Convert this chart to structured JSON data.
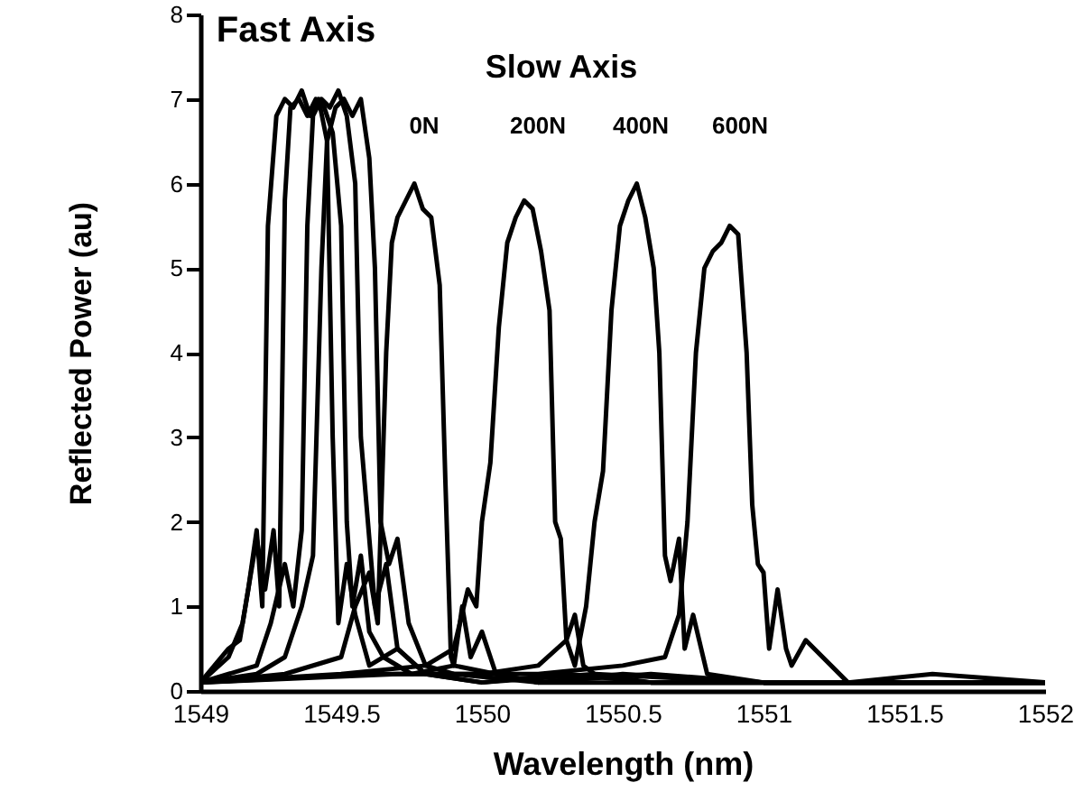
{
  "chart_data": {
    "type": "line",
    "xlabel": "Wavelength (nm)",
    "ylabel": "Reflected Power (au)",
    "xlim": [
      1549,
      1552
    ],
    "xticks": [
      1549,
      1549.5,
      1550,
      1550.5,
      1551,
      1551.5,
      1552
    ],
    "ylim": [
      0,
      8
    ],
    "yticks": [
      0,
      1,
      2,
      3,
      4,
      5,
      6,
      7,
      8
    ],
    "annotations": [
      "Fast Axis",
      "Slow Axis",
      "0N",
      "200N",
      "400N",
      "600N"
    ],
    "series": [
      {
        "color": "#000000",
        "x": [
          1549,
          1549.05,
          1549.1,
          1549.14,
          1549.17,
          1549.2,
          1549.22,
          1549.24,
          1549.27,
          1549.3,
          1549.33,
          1549.36,
          1549.39,
          1549.42,
          1549.45,
          1549.47,
          1549.49,
          1549.52,
          1549.55,
          1549.6,
          1549.7,
          1549.8,
          1550,
          1550.3,
          1550.6,
          1551,
          1551.5,
          1552
        ],
        "values": [
          0.1,
          0.3,
          0.5,
          0.6,
          1.2,
          1.9,
          1.0,
          5.5,
          6.8,
          7.0,
          6.9,
          7.1,
          6.8,
          7.0,
          6.5,
          3,
          0.8,
          1.5,
          0.9,
          0.3,
          0.5,
          0.2,
          0.1,
          0.2,
          0.1,
          0.1,
          0.1,
          0.1
        ]
      },
      {
        "color": "#000000",
        "x": [
          1549,
          1549.1,
          1549.15,
          1549.2,
          1549.23,
          1549.26,
          1549.28,
          1549.3,
          1549.32,
          1549.35,
          1549.38,
          1549.41,
          1549.44,
          1549.47,
          1549.5,
          1549.52,
          1549.54,
          1549.57,
          1549.6,
          1549.65,
          1549.75,
          1549.9,
          1550.2,
          1550.5,
          1551,
          1551.5,
          1552
        ],
        "values": [
          0.1,
          0.4,
          0.8,
          1.8,
          1.2,
          1.9,
          1.0,
          5.8,
          6.9,
          7.0,
          6.8,
          7.0,
          6.9,
          6.6,
          5.5,
          2.0,
          1.0,
          1.6,
          0.7,
          0.4,
          0.2,
          0.3,
          0.1,
          0.2,
          0.1,
          0.1,
          0.1
        ]
      },
      {
        "color": "#000000",
        "x": [
          1549,
          1549.1,
          1549.2,
          1549.25,
          1549.3,
          1549.33,
          1549.36,
          1549.38,
          1549.4,
          1549.43,
          1549.46,
          1549.49,
          1549.52,
          1549.55,
          1549.57,
          1549.6,
          1549.62,
          1549.66,
          1549.7,
          1549.8,
          1550,
          1550.4,
          1551,
          1552
        ],
        "values": [
          0.1,
          0.2,
          0.3,
          0.8,
          1.5,
          1.0,
          1.9,
          5.5,
          6.8,
          7.0,
          6.9,
          7.1,
          6.8,
          6.0,
          3.0,
          1.8,
          1.0,
          1.5,
          0.5,
          0.2,
          0.1,
          0.2,
          0.1,
          0.1
        ]
      },
      {
        "color": "#000000",
        "x": [
          1549,
          1549.2,
          1549.3,
          1549.36,
          1549.4,
          1549.43,
          1549.45,
          1549.48,
          1549.51,
          1549.54,
          1549.57,
          1549.6,
          1549.62,
          1549.64,
          1549.67,
          1549.7,
          1549.74,
          1549.8,
          1549.9,
          1550.2,
          1550.8,
          1551.5,
          1552
        ],
        "values": [
          0.1,
          0.2,
          0.4,
          1.0,
          1.6,
          5.0,
          6.5,
          6.9,
          7.0,
          6.8,
          7.0,
          6.3,
          5.0,
          2.0,
          1.5,
          1.8,
          0.8,
          0.3,
          0.2,
          0.1,
          0.1,
          0.1,
          0.1
        ]
      },
      {
        "color": "#000000",
        "x": [
          1549,
          1549.3,
          1549.5,
          1549.55,
          1549.6,
          1549.63,
          1549.66,
          1549.68,
          1549.7,
          1549.73,
          1549.76,
          1549.79,
          1549.82,
          1549.85,
          1549.87,
          1549.89,
          1549.9,
          1549.93,
          1549.96,
          1550,
          1550.05,
          1550.2,
          1550.6,
          1551,
          1552
        ],
        "values": [
          0.1,
          0.2,
          0.4,
          1.0,
          1.4,
          0.8,
          4.0,
          5.3,
          5.6,
          5.8,
          6.0,
          5.7,
          5.6,
          4.8,
          2.5,
          0.4,
          0.3,
          1.0,
          0.4,
          0.7,
          0.2,
          0.1,
          0.2,
          0.1,
          0.1
        ]
      },
      {
        "color": "#000000",
        "x": [
          1549,
          1549.5,
          1549.8,
          1549.9,
          1549.95,
          1549.98,
          1550.0,
          1550.03,
          1550.06,
          1550.09,
          1550.12,
          1550.15,
          1550.18,
          1550.21,
          1550.24,
          1550.26,
          1550.28,
          1550.3,
          1550.33,
          1550.36,
          1550.4,
          1550.6,
          1551,
          1552
        ],
        "values": [
          0.1,
          0.2,
          0.3,
          0.5,
          1.2,
          1.0,
          2.0,
          2.7,
          4.3,
          5.3,
          5.6,
          5.8,
          5.7,
          5.2,
          4.5,
          2.0,
          1.8,
          0.6,
          0.9,
          0.3,
          0.2,
          0.1,
          0.1,
          0.1
        ]
      },
      {
        "color": "#000000",
        "x": [
          1549,
          1549.6,
          1550,
          1550.2,
          1550.3,
          1550.33,
          1550.37,
          1550.4,
          1550.43,
          1550.46,
          1550.49,
          1550.52,
          1550.55,
          1550.58,
          1550.61,
          1550.63,
          1550.65,
          1550.67,
          1550.7,
          1550.72,
          1550.75,
          1550.8,
          1551,
          1552
        ],
        "values": [
          0.1,
          0.2,
          0.2,
          0.3,
          0.6,
          0.3,
          1.0,
          2.0,
          2.6,
          4.5,
          5.5,
          5.8,
          6.0,
          5.6,
          5.0,
          4.0,
          1.6,
          1.3,
          1.8,
          0.5,
          0.9,
          0.2,
          0.1,
          0.1
        ]
      },
      {
        "color": "#000000",
        "x": [
          1549,
          1549.7,
          1550.2,
          1550.5,
          1550.65,
          1550.7,
          1550.73,
          1550.76,
          1550.79,
          1550.82,
          1550.85,
          1550.88,
          1550.91,
          1550.94,
          1550.96,
          1550.98,
          1551.0,
          1551.02,
          1551.05,
          1551.08,
          1551.1,
          1551.15,
          1551.3,
          1551.6,
          1552
        ],
        "values": [
          0.1,
          0.2,
          0.2,
          0.3,
          0.4,
          0.9,
          2.0,
          4.0,
          5.0,
          5.2,
          5.3,
          5.5,
          5.4,
          4.0,
          2.2,
          1.5,
          1.4,
          0.5,
          1.2,
          0.5,
          0.3,
          0.6,
          0.1,
          0.2,
          0.1
        ]
      }
    ]
  }
}
